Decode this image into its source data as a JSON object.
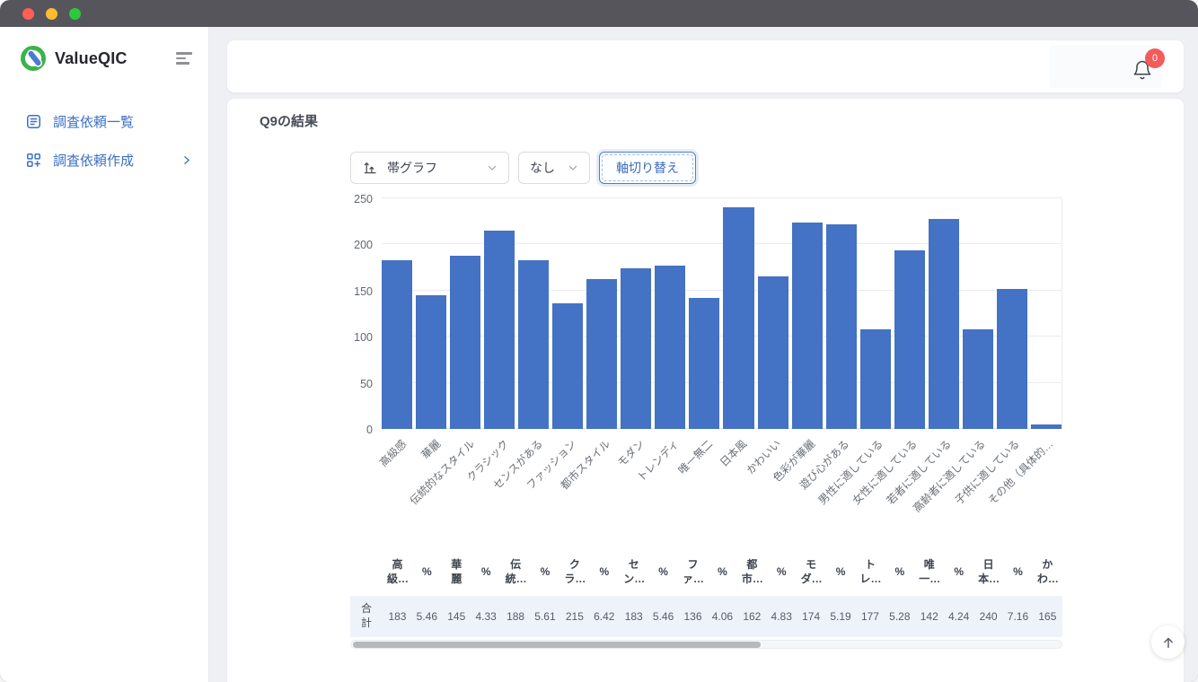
{
  "titlebar": {
    "buttons": [
      "close",
      "minimize",
      "zoom"
    ]
  },
  "sidebar": {
    "brand": "ValueQIC",
    "items": [
      {
        "label": "調査依頼一覧",
        "icon": "document-list-icon",
        "has_chevron": false
      },
      {
        "label": "調査依頼作成",
        "icon": "grid-add-icon",
        "has_chevron": true
      }
    ]
  },
  "header": {
    "notification_badge": "0"
  },
  "main": {
    "page_title": "Q9の結果",
    "controls": {
      "chart_type_value": "帯グラフ",
      "segment_value": "なし",
      "axis_toggle_label": "軸切り替え"
    }
  },
  "chart_data": {
    "type": "bar",
    "title": "Q9の結果",
    "categories": [
      "高級感",
      "華麗",
      "伝統的なスタイル",
      "クラシック",
      "センスがある",
      "ファッション",
      "都市スタイル",
      "モダン",
      "トレンディ",
      "唯一無二",
      "日本風",
      "かわいい",
      "色彩が華麗",
      "遊び心がある",
      "男性に適している",
      "女性に適している",
      "若者に適している",
      "高齢者に適している",
      "子供に適している",
      "その他（具体的…"
    ],
    "values": [
      183,
      145,
      188,
      215,
      183,
      136,
      162,
      174,
      177,
      142,
      240,
      165,
      224,
      222,
      108,
      194,
      228,
      108,
      152,
      5
    ],
    "xlabel": "",
    "ylabel": "",
    "ylim": [
      0,
      250
    ],
    "yticks": [
      0,
      50,
      100,
      150,
      200,
      250
    ],
    "grid": true,
    "legend_position": "none",
    "bar_color": "#4472c4"
  },
  "table": {
    "row_header": "合計",
    "columns": [
      {
        "label": "高級…",
        "value": "183"
      },
      {
        "label": "%",
        "value": "5.46"
      },
      {
        "label": "華麗",
        "value": "145"
      },
      {
        "label": "%",
        "value": "4.33"
      },
      {
        "label": "伝統…",
        "value": "188"
      },
      {
        "label": "%",
        "value": "5.61"
      },
      {
        "label": "クラ…",
        "value": "215"
      },
      {
        "label": "%",
        "value": "6.42"
      },
      {
        "label": "セン…",
        "value": "183"
      },
      {
        "label": "%",
        "value": "5.46"
      },
      {
        "label": "ファ…",
        "value": "136"
      },
      {
        "label": "%",
        "value": "4.06"
      },
      {
        "label": "都市…",
        "value": "162"
      },
      {
        "label": "%",
        "value": "4.83"
      },
      {
        "label": "モダ…",
        "value": "174"
      },
      {
        "label": "%",
        "value": "5.19"
      },
      {
        "label": "トレ…",
        "value": "177"
      },
      {
        "label": "%",
        "value": "5.28"
      },
      {
        "label": "唯一…",
        "value": "142"
      },
      {
        "label": "%",
        "value": "4.24"
      },
      {
        "label": "日本…",
        "value": "240"
      },
      {
        "label": "%",
        "value": "7.16"
      },
      {
        "label": "かわ…",
        "value": "165"
      }
    ]
  },
  "colors": {
    "accent_blue": "#3a6fc3",
    "bar_blue": "#4472c4",
    "badge_red": "#f45b5b",
    "titlebar_gray": "#56555b",
    "background_gray": "#eff0f3",
    "table_row_bg": "#edf3f9"
  }
}
